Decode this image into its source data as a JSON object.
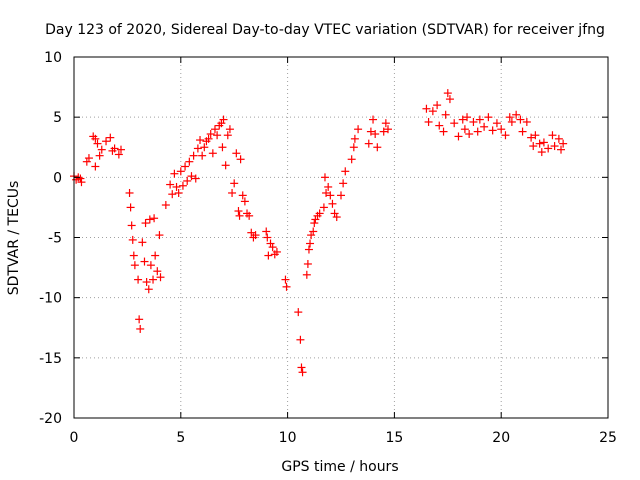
{
  "chart_data": {
    "type": "scatter",
    "title": "Day 123 of 2020, Sidereal Day-to-day VTEC variation (SDTVAR) for receiver jfng",
    "xlabel": "GPS time / hours",
    "ylabel": "SDTVAR / TECUs",
    "xlim": [
      0,
      25
    ],
    "ylim": [
      -20,
      10
    ],
    "xticks": [
      0,
      5,
      10,
      15,
      20,
      25
    ],
    "yticks": [
      -20,
      -15,
      -10,
      -5,
      0,
      5,
      10
    ],
    "grid": true,
    "marker": "+",
    "color": "#ff0000",
    "series": [
      {
        "name": "SDTVAR",
        "points": [
          [
            0.0,
            0.1
          ],
          [
            0.1,
            -0.2
          ],
          [
            0.2,
            0.0
          ],
          [
            0.3,
            -0.1
          ],
          [
            0.35,
            -0.4
          ],
          [
            0.6,
            1.3
          ],
          [
            0.7,
            1.6
          ],
          [
            0.9,
            3.4
          ],
          [
            1.0,
            3.2
          ],
          [
            1.0,
            0.9
          ],
          [
            1.1,
            2.8
          ],
          [
            1.2,
            1.8
          ],
          [
            1.3,
            2.3
          ],
          [
            1.5,
            3.0
          ],
          [
            1.7,
            3.3
          ],
          [
            1.8,
            2.2
          ],
          [
            1.9,
            2.4
          ],
          [
            2.1,
            1.9
          ],
          [
            2.2,
            2.3
          ],
          [
            2.6,
            -1.3
          ],
          [
            2.65,
            -2.5
          ],
          [
            2.7,
            -4.0
          ],
          [
            2.75,
            -5.2
          ],
          [
            2.8,
            -6.5
          ],
          [
            2.85,
            -7.3
          ],
          [
            3.0,
            -8.5
          ],
          [
            3.05,
            -11.8
          ],
          [
            3.1,
            -12.6
          ],
          [
            3.2,
            -5.4
          ],
          [
            3.3,
            -7.0
          ],
          [
            3.35,
            -3.8
          ],
          [
            3.4,
            -8.7
          ],
          [
            3.5,
            -9.3
          ],
          [
            3.55,
            -3.5
          ],
          [
            3.6,
            -7.3
          ],
          [
            3.7,
            -8.5
          ],
          [
            3.75,
            -3.4
          ],
          [
            3.8,
            -6.5
          ],
          [
            3.9,
            -7.8
          ],
          [
            4.0,
            -4.8
          ],
          [
            4.05,
            -8.3
          ],
          [
            4.3,
            -2.3
          ],
          [
            4.5,
            -0.6
          ],
          [
            4.6,
            -1.4
          ],
          [
            4.7,
            0.3
          ],
          [
            4.8,
            -0.8
          ],
          [
            4.9,
            -1.3
          ],
          [
            5.0,
            0.5
          ],
          [
            5.1,
            -0.7
          ],
          [
            5.2,
            0.9
          ],
          [
            5.3,
            -0.3
          ],
          [
            5.4,
            1.3
          ],
          [
            5.5,
            0.1
          ],
          [
            5.6,
            1.8
          ],
          [
            5.7,
            -0.1
          ],
          [
            5.8,
            2.4
          ],
          [
            5.9,
            3.1
          ],
          [
            6.0,
            1.8
          ],
          [
            6.1,
            2.5
          ],
          [
            6.2,
            3.0
          ],
          [
            6.3,
            3.2
          ],
          [
            6.4,
            3.6
          ],
          [
            6.5,
            2.0
          ],
          [
            6.6,
            4.0
          ],
          [
            6.7,
            3.5
          ],
          [
            6.8,
            4.3
          ],
          [
            6.9,
            4.5
          ],
          [
            6.95,
            2.5
          ],
          [
            7.0,
            4.8
          ],
          [
            7.1,
            1.0
          ],
          [
            7.2,
            3.5
          ],
          [
            7.3,
            4.0
          ],
          [
            7.4,
            -1.3
          ],
          [
            7.5,
            -0.5
          ],
          [
            7.6,
            2.0
          ],
          [
            7.7,
            -2.8
          ],
          [
            7.75,
            -3.2
          ],
          [
            7.8,
            1.5
          ],
          [
            7.9,
            -1.5
          ],
          [
            8.0,
            -2.0
          ],
          [
            8.1,
            -3.0
          ],
          [
            8.2,
            -3.2
          ],
          [
            8.3,
            -4.6
          ],
          [
            8.4,
            -5.0
          ],
          [
            8.5,
            -4.8
          ],
          [
            9.0,
            -4.5
          ],
          [
            9.05,
            -5.0
          ],
          [
            9.1,
            -6.5
          ],
          [
            9.2,
            -5.5
          ],
          [
            9.3,
            -5.8
          ],
          [
            9.4,
            -6.4
          ],
          [
            9.5,
            -6.2
          ],
          [
            9.9,
            -8.5
          ],
          [
            9.95,
            -9.1
          ],
          [
            10.5,
            -11.2
          ],
          [
            10.6,
            -13.5
          ],
          [
            10.65,
            -15.8
          ],
          [
            10.7,
            -16.2
          ],
          [
            10.9,
            -8.1
          ],
          [
            10.95,
            -7.2
          ],
          [
            11.0,
            -6.0
          ],
          [
            11.05,
            -5.5
          ],
          [
            11.1,
            -4.8
          ],
          [
            11.2,
            -4.5
          ],
          [
            11.25,
            -3.8
          ],
          [
            11.3,
            -3.5
          ],
          [
            11.4,
            -3.2
          ],
          [
            11.5,
            -3.0
          ],
          [
            11.7,
            -2.5
          ],
          [
            11.75,
            0.0
          ],
          [
            11.8,
            -1.3
          ],
          [
            11.9,
            -0.8
          ],
          [
            12.0,
            -1.5
          ],
          [
            12.1,
            -2.2
          ],
          [
            12.2,
            -3.0
          ],
          [
            12.3,
            -3.3
          ],
          [
            12.5,
            -1.5
          ],
          [
            12.6,
            -0.5
          ],
          [
            12.7,
            0.5
          ],
          [
            13.0,
            1.5
          ],
          [
            13.1,
            2.5
          ],
          [
            13.15,
            3.2
          ],
          [
            13.3,
            4.0
          ],
          [
            13.8,
            2.8
          ],
          [
            13.9,
            3.8
          ],
          [
            14.0,
            4.8
          ],
          [
            14.1,
            3.6
          ],
          [
            14.2,
            2.5
          ],
          [
            14.5,
            3.8
          ],
          [
            14.6,
            4.5
          ],
          [
            14.7,
            4.0
          ],
          [
            16.5,
            5.7
          ],
          [
            16.6,
            4.6
          ],
          [
            16.8,
            5.5
          ],
          [
            17.0,
            6.0
          ],
          [
            17.1,
            4.3
          ],
          [
            17.3,
            3.8
          ],
          [
            17.4,
            5.2
          ],
          [
            17.5,
            7.0
          ],
          [
            17.6,
            6.5
          ],
          [
            17.8,
            4.5
          ],
          [
            18.0,
            3.4
          ],
          [
            18.2,
            4.8
          ],
          [
            18.3,
            4.0
          ],
          [
            18.4,
            5.0
          ],
          [
            18.5,
            3.6
          ],
          [
            18.7,
            4.6
          ],
          [
            18.9,
            3.8
          ],
          [
            19.0,
            4.8
          ],
          [
            19.2,
            4.2
          ],
          [
            19.4,
            5.0
          ],
          [
            19.6,
            3.9
          ],
          [
            19.8,
            4.5
          ],
          [
            20.0,
            4.0
          ],
          [
            20.2,
            3.5
          ],
          [
            20.4,
            5.0
          ],
          [
            20.5,
            4.6
          ],
          [
            20.7,
            5.2
          ],
          [
            20.9,
            4.8
          ],
          [
            21.0,
            3.8
          ],
          [
            21.2,
            4.6
          ],
          [
            21.4,
            3.3
          ],
          [
            21.5,
            2.6
          ],
          [
            21.6,
            3.5
          ],
          [
            21.8,
            2.8
          ],
          [
            21.9,
            2.1
          ],
          [
            22.0,
            2.9
          ],
          [
            22.2,
            2.4
          ],
          [
            22.4,
            3.5
          ],
          [
            22.5,
            2.6
          ],
          [
            22.7,
            3.2
          ],
          [
            22.8,
            2.3
          ],
          [
            22.9,
            2.8
          ]
        ]
      }
    ]
  }
}
